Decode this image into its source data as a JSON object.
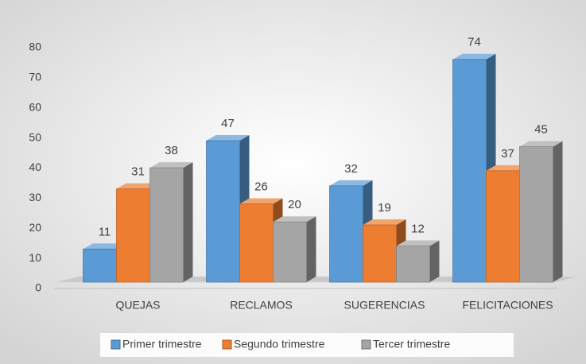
{
  "chart_data": {
    "type": "bar3d",
    "categories": [
      "QUEJAS",
      "RECLAMOS",
      "SUGERENCIAS",
      "FELICITACIONES"
    ],
    "series": [
      {
        "name": "Primer trimestre",
        "color": "#5b9bd5",
        "values": [
          11,
          47,
          32,
          74
        ]
      },
      {
        "name": "Segundo trimestre",
        "color": "#ed7d31",
        "values": [
          31,
          26,
          19,
          37
        ]
      },
      {
        "name": "Tercer trimestre",
        "color": "#a5a5a5",
        "values": [
          38,
          20,
          12,
          45
        ]
      }
    ],
    "ylim": [
      0,
      80
    ],
    "yticks": [
      0,
      10,
      20,
      30,
      40,
      50,
      60,
      70,
      80
    ],
    "legend": "bottom"
  }
}
